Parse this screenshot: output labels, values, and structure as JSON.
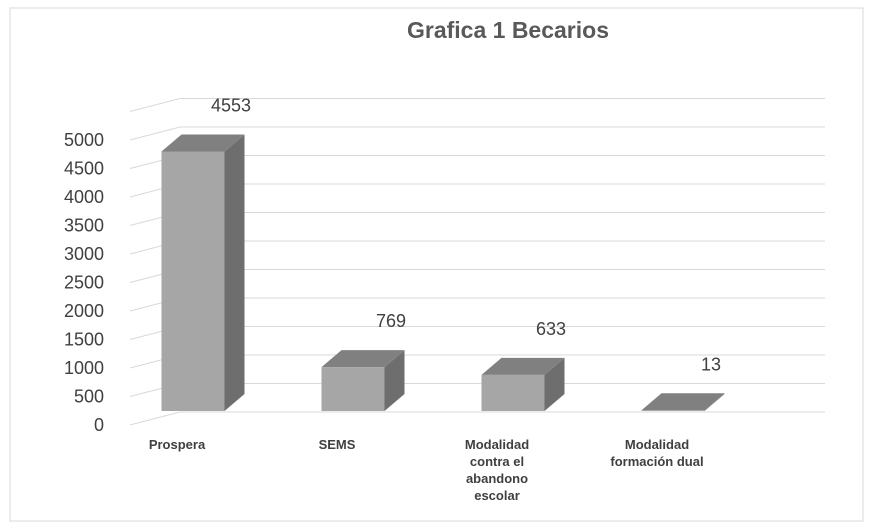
{
  "chart_data": {
    "type": "bar3d",
    "title": "Grafica 1 Becarios",
    "categories": [
      "Prospera",
      "SEMS",
      "Modalidad contra el abandono escolar",
      "Modalidad formación dual"
    ],
    "values": [
      4553,
      769,
      633,
      13
    ],
    "color": "#a6a6a6",
    "ylim": [
      0,
      5500
    ],
    "yticks": [
      0,
      500,
      1000,
      1500,
      2000,
      2500,
      3000,
      3500,
      4000,
      4500,
      5000
    ],
    "grid": true
  }
}
